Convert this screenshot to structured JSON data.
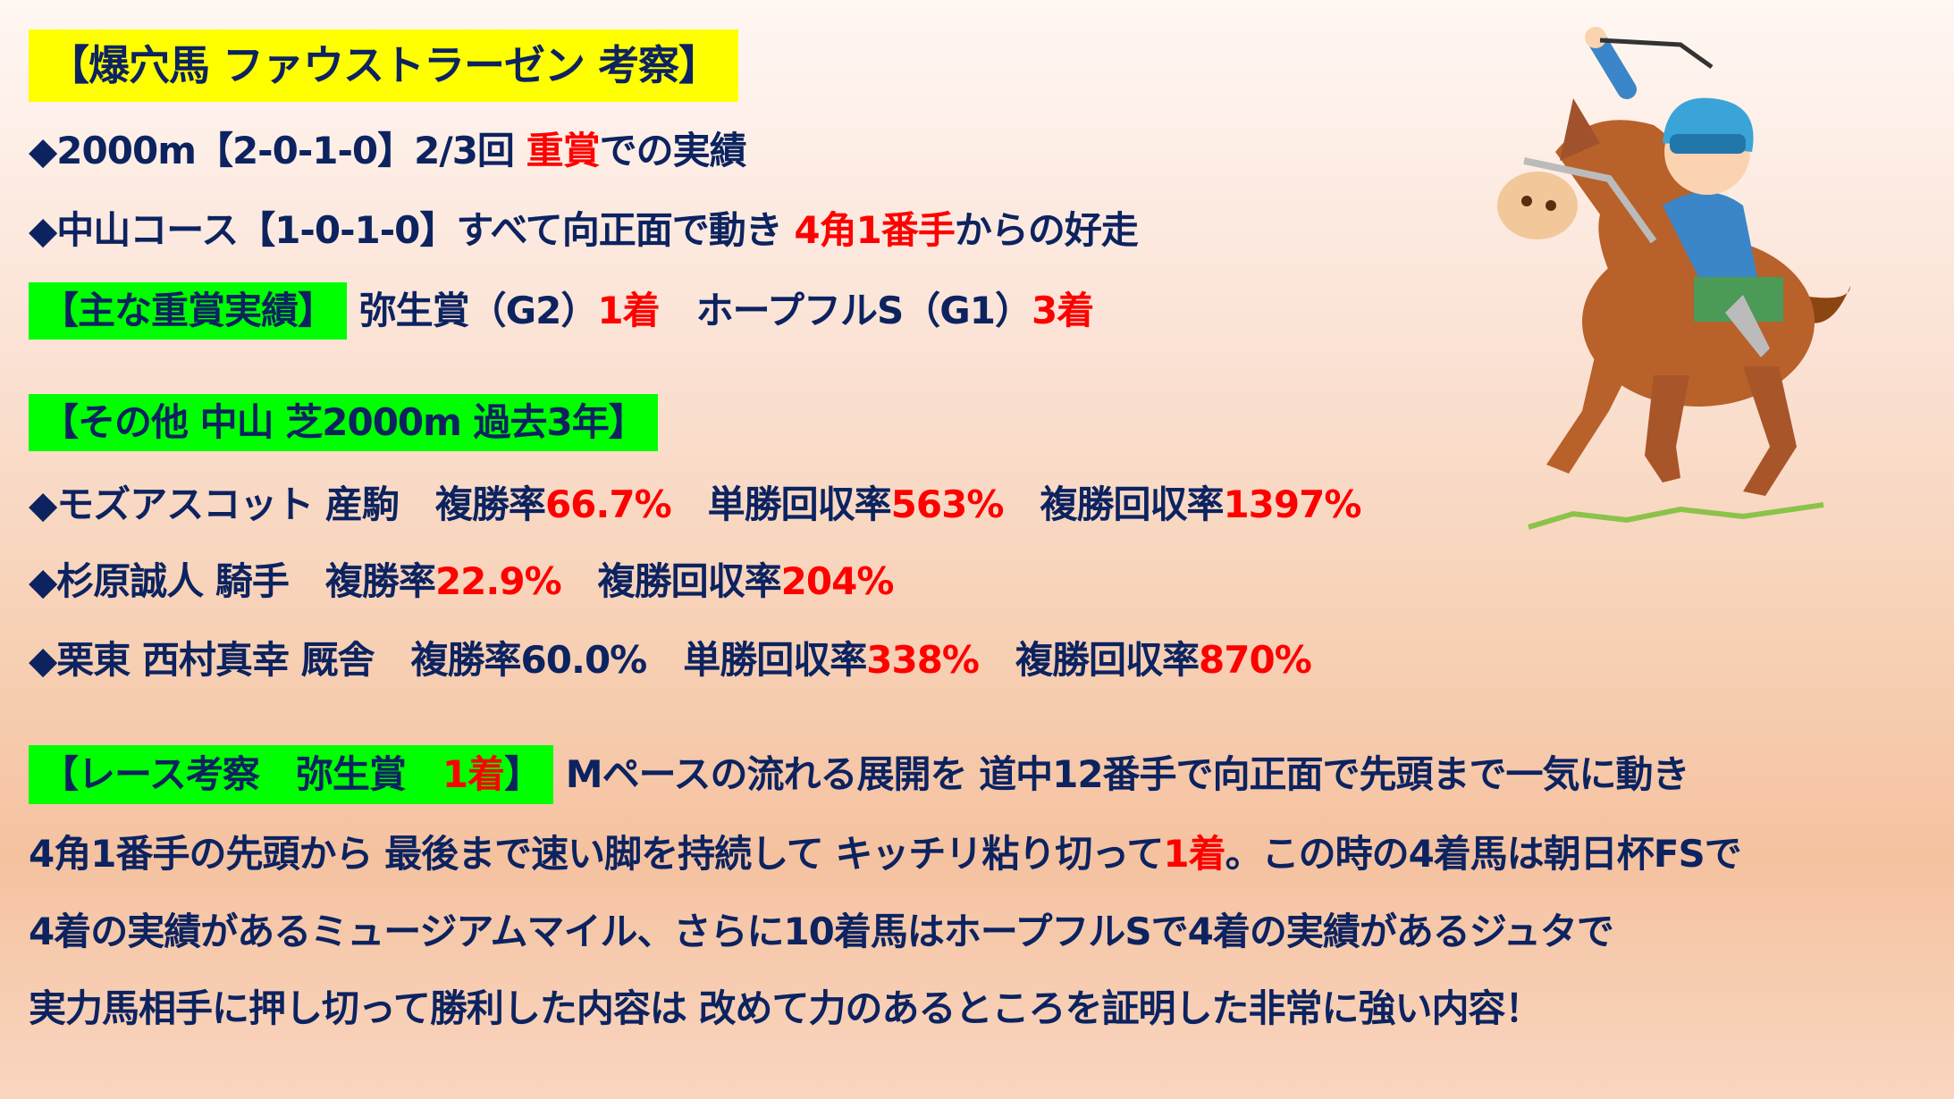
{
  "title": "【爆穴馬 ファウストラーゼン 考察】",
  "line1": {
    "a": "◆2000m【2-0-1-0】2/3回 ",
    "b": "重賞",
    "c": "での実績"
  },
  "line2": {
    "a": "◆中山コース【1-0-1-0】すべて向正面で動き ",
    "b": "4角1番手",
    "c": "からの好走"
  },
  "line3": {
    "label": "【主な重賞実績】",
    "a": " 弥生賞（G2）",
    "b": "1着",
    "c": "　ホープフルS（G1）",
    "d": "3着"
  },
  "section2": {
    "label": "【その他 中山 芝2000m 過去3年】",
    "rows": [
      {
        "a": "◆モズアスコット 産駒　複勝率",
        "b": "66.7%",
        "c": "　単勝回収率",
        "d": "563%",
        "e": "　複勝回収率",
        "f": "1397%"
      },
      {
        "a": "◆杉原誠人 騎手　複勝率",
        "b": "22.9%",
        "c": "　複勝回収率",
        "d": "204%"
      },
      {
        "a": "◆栗東 西村真幸 厩舎　複勝率60.0%　単勝回収率",
        "b": "338%",
        "c": "　複勝回収率",
        "d": "870%"
      }
    ]
  },
  "race": {
    "label_a": "【レース考察　弥生賞　",
    "label_b": "1着",
    "label_c": "】",
    "l1": " Mペースの流れる展開を 道中12番手で向正面で先頭まで一気に動き",
    "l2a": "4角1番手の先頭から 最後まで速い脚を持続して キッチリ粘り切って",
    "l2b": "1着",
    "l2c": "。この時の4着馬は朝日杯FSで",
    "l3": "4着の実績があるミュージアムマイル、さらに10着馬はホープフルSで4着の実績があるジュタで",
    "l4": "実力馬相手に押し切って勝利した内容は 改めて力のあるところを証明した非常に強い内容！"
  },
  "colors": {
    "text": "#0c2360",
    "highlight": "#ff0000",
    "title_bg": "#ffff00",
    "label_bg": "#00ff00"
  },
  "illustration": "jockey-on-horse-icon"
}
